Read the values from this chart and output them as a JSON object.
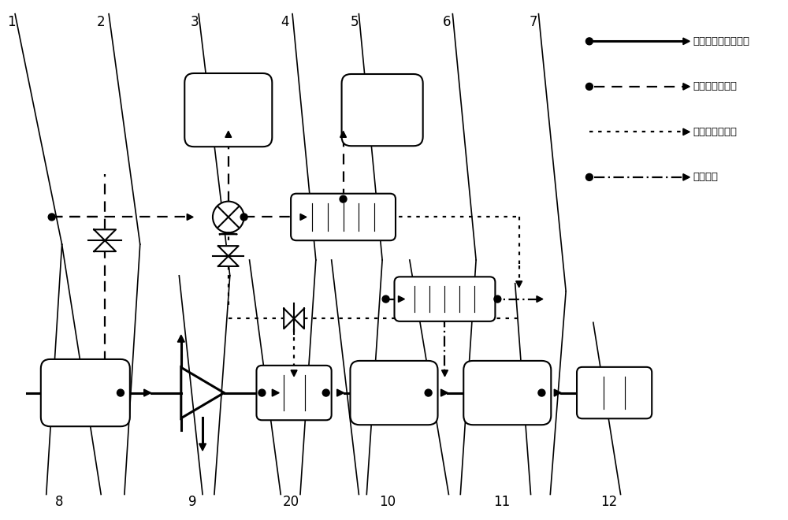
{
  "bg_color": "#ffffff",
  "figsize": [
    10.0,
    6.6
  ],
  "dpi": 100,
  "legend_entries": [
    {
      "label": "发动机空气主流流路",
      "ls": "-",
      "lw": 2.2,
      "dot": true
    },
    {
      "label": "进气道引气流路",
      "ls": "--",
      "lw": 1.6,
      "dot": true
    },
    {
      "label": "压气机引气流路",
      "ls": ":",
      "lw": 1.6,
      "dot": false
    },
    {
      "label": "燃油流路",
      "ls": "-.",
      "lw": 1.6,
      "dot": true
    }
  ]
}
